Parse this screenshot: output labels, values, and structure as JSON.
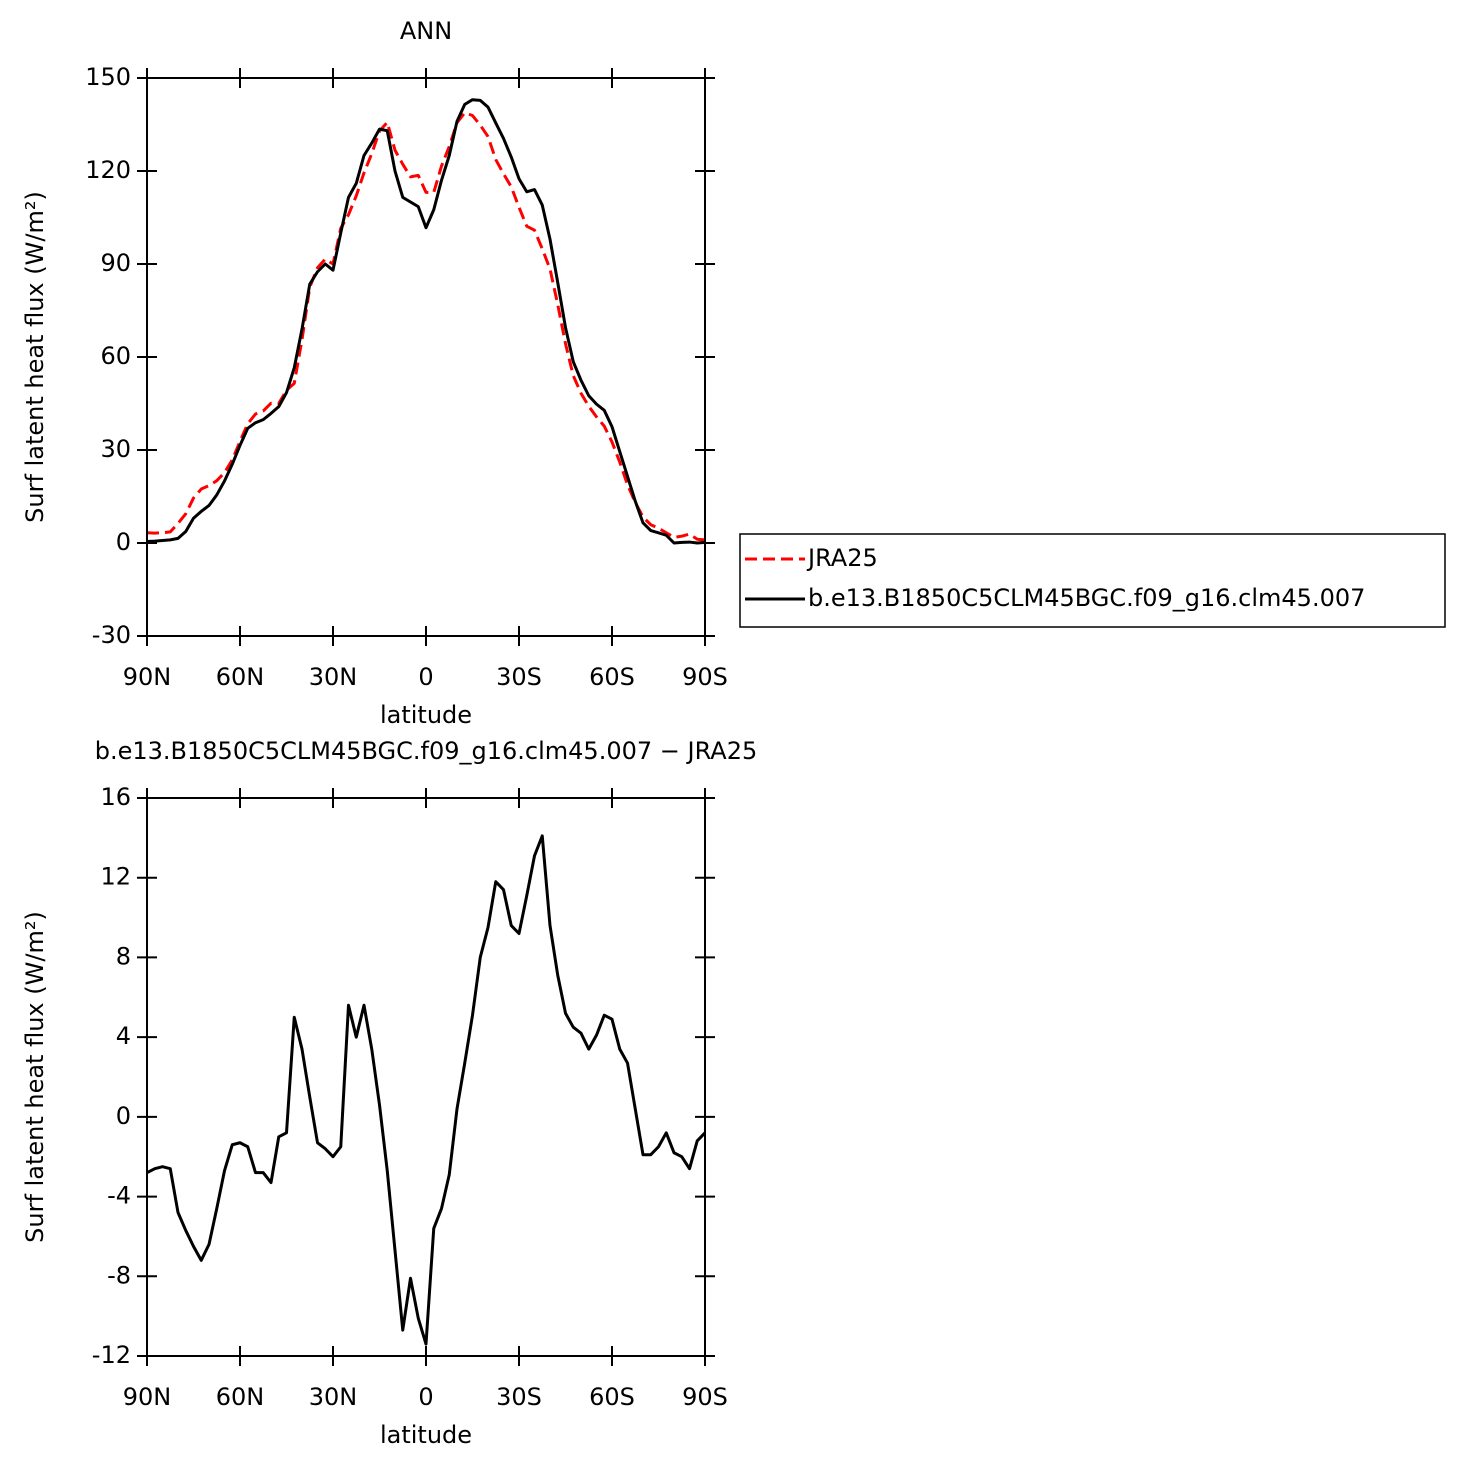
{
  "chart_data": [
    {
      "type": "line",
      "title": "ANN",
      "xlabel": "latitude",
      "ylabel": "Surf latent heat flux (W/m²)",
      "x": [
        90,
        87.5,
        85,
        82.5,
        80,
        77.5,
        75,
        72.5,
        70,
        67.5,
        65,
        62.5,
        60,
        57.5,
        55,
        52.5,
        50,
        47.5,
        45,
        42.5,
        40,
        37.5,
        35,
        32.5,
        30,
        27.5,
        25,
        22.5,
        20,
        17.5,
        15,
        12.5,
        10,
        7.5,
        5,
        2.5,
        0,
        -2.5,
        -5,
        -7.5,
        -10,
        -12.5,
        -15,
        -17.5,
        -20,
        -22.5,
        -25,
        -27.5,
        -30,
        -32.5,
        -35,
        -37.5,
        -40,
        -42.5,
        -45,
        -47.5,
        -50,
        -52.5,
        -55,
        -57.5,
        -60,
        -62.5,
        -65,
        -67.5,
        -70,
        -72.5,
        -75,
        -77.5,
        -80,
        -82.5,
        -85,
        -87.5,
        -90
      ],
      "series": [
        {
          "name": "JRA25",
          "color": "#ff0000",
          "line_style": "dashed",
          "values": [
            3.3,
            3.2,
            3.3,
            3.6,
            6.3,
            9.4,
            14.5,
            17.4,
            18.5,
            20.1,
            22.7,
            26.8,
            32.8,
            38.5,
            41.6,
            42.6,
            45.1,
            45.0,
            49.3,
            51.5,
            65.6,
            82.5,
            88.8,
            91.6,
            90.0,
            101.5,
            105.9,
            112.0,
            119.4,
            125.6,
            132.9,
            135.7,
            126.7,
            122.2,
            118.1,
            118.6,
            113.1,
            113.1,
            121.6,
            127.9,
            135.6,
            138.8,
            137.9,
            134.8,
            131.1,
            123.7,
            119.1,
            114.9,
            108.3,
            102.2,
            100.9,
            94.9,
            88.4,
            76.9,
            64.3,
            54.0,
            48.3,
            44.1,
            40.7,
            37.7,
            32.6,
            26.1,
            18.8,
            13.1,
            8.4,
            5.9,
            4.8,
            3.3,
            1.8,
            2.2,
            2.9,
            1.2,
            1.0
          ]
        },
        {
          "name": "b.e13.B1850C5CLM45BGC.f09_g16.clm45.007",
          "color": "#000000",
          "line_style": "solid",
          "values": [
            0.5,
            0.6,
            0.8,
            1.0,
            1.5,
            3.7,
            8.0,
            10.2,
            12.1,
            15.5,
            20.0,
            25.4,
            31.5,
            37.0,
            38.8,
            39.8,
            41.8,
            44.0,
            48.5,
            56.5,
            69.0,
            83.5,
            87.5,
            90.0,
            88.0,
            100.0,
            111.5,
            116.0,
            125.0,
            129.0,
            133.5,
            133.0,
            120.0,
            111.5,
            110.0,
            108.5,
            101.7,
            107.5,
            117.0,
            125.0,
            136.0,
            141.5,
            143.0,
            142.8,
            140.6,
            135.5,
            130.5,
            124.5,
            117.5,
            113.3,
            114.0,
            109.0,
            98.0,
            84.0,
            69.5,
            58.5,
            52.5,
            47.5,
            44.8,
            42.8,
            37.5,
            29.5,
            21.5,
            13.5,
            6.5,
            4.0,
            3.3,
            2.5,
            0,
            0.2,
            0.3,
            0,
            0.2
          ]
        }
      ],
      "xlim": [
        90,
        -90
      ],
      "xticks": [
        {
          "value": 90,
          "label": "90N"
        },
        {
          "value": 60,
          "label": "60N"
        },
        {
          "value": 30,
          "label": "30N"
        },
        0,
        {
          "value": -30,
          "label": "30S"
        },
        {
          "value": -60,
          "label": "60S"
        },
        {
          "value": -90,
          "label": "90S"
        }
      ],
      "ylim": [
        -30,
        150
      ],
      "yticks": [
        -30,
        0,
        30,
        60,
        90,
        120,
        150
      ],
      "legend": "right"
    },
    {
      "type": "line",
      "title": "b.e13.B1850C5CLM45BGC.f09_g16.clm45.007 − JRA25",
      "xlabel": "latitude",
      "ylabel": "Surf latent heat flux (W/m²)",
      "x": [
        90,
        87.5,
        85,
        82.5,
        80,
        77.5,
        75,
        72.5,
        70,
        67.5,
        65,
        62.5,
        60,
        57.5,
        55,
        52.5,
        50,
        47.5,
        45,
        42.5,
        40,
        37.5,
        35,
        32.5,
        30,
        27.5,
        25,
        22.5,
        20,
        17.5,
        15,
        12.5,
        10,
        7.5,
        5,
        2.5,
        0,
        -2.5,
        -5,
        -7.5,
        -10,
        -12.5,
        -15,
        -17.5,
        -20,
        -22.5,
        -25,
        -27.5,
        -30,
        -32.5,
        -35,
        -37.5,
        -40,
        -42.5,
        -45,
        -47.5,
        -50,
        -52.5,
        -55,
        -57.5,
        -60,
        -62.5,
        -65,
        -67.5,
        -70,
        -72.5,
        -75,
        -77.5,
        -80,
        -82.5,
        -85,
        -87.5,
        -90
      ],
      "color": "#000000",
      "values": [
        -2.8,
        -2.6,
        -2.5,
        -2.6,
        -4.8,
        -5.7,
        -6.5,
        -7.2,
        -6.4,
        -4.6,
        -2.7,
        -1.4,
        -1.3,
        -1.5,
        -2.8,
        -2.8,
        -3.3,
        -1.0,
        -0.8,
        5.0,
        3.4,
        1.0,
        -1.3,
        -1.6,
        -2.0,
        -1.5,
        5.6,
        4.0,
        5.6,
        3.4,
        0.6,
        -2.7,
        -6.7,
        -10.7,
        -8.1,
        -10.1,
        -11.4,
        -5.6,
        -4.6,
        -2.9,
        0.4,
        2.7,
        5.1,
        8.0,
        9.5,
        11.8,
        11.4,
        9.6,
        9.2,
        11.1,
        13.1,
        14.1,
        9.6,
        7.1,
        5.2,
        4.5,
        4.2,
        3.4,
        4.1,
        5.1,
        4.9,
        3.4,
        2.7,
        0.4,
        -1.9,
        -1.9,
        -1.5,
        -0.8,
        -1.8,
        -2.0,
        -2.6,
        -1.2,
        -0.8
      ],
      "xlim": [
        90,
        -90
      ],
      "xticks": [
        {
          "value": 90,
          "label": "90N"
        },
        {
          "value": 60,
          "label": "60N"
        },
        {
          "value": 30,
          "label": "30N"
        },
        0,
        {
          "value": -30,
          "label": "30S"
        },
        {
          "value": -60,
          "label": "60S"
        },
        {
          "value": -90,
          "label": "90S"
        }
      ],
      "ylim": [
        -12,
        16
      ],
      "yticks": [
        -12,
        -8,
        -4,
        0,
        4,
        8,
        12,
        16
      ]
    }
  ]
}
